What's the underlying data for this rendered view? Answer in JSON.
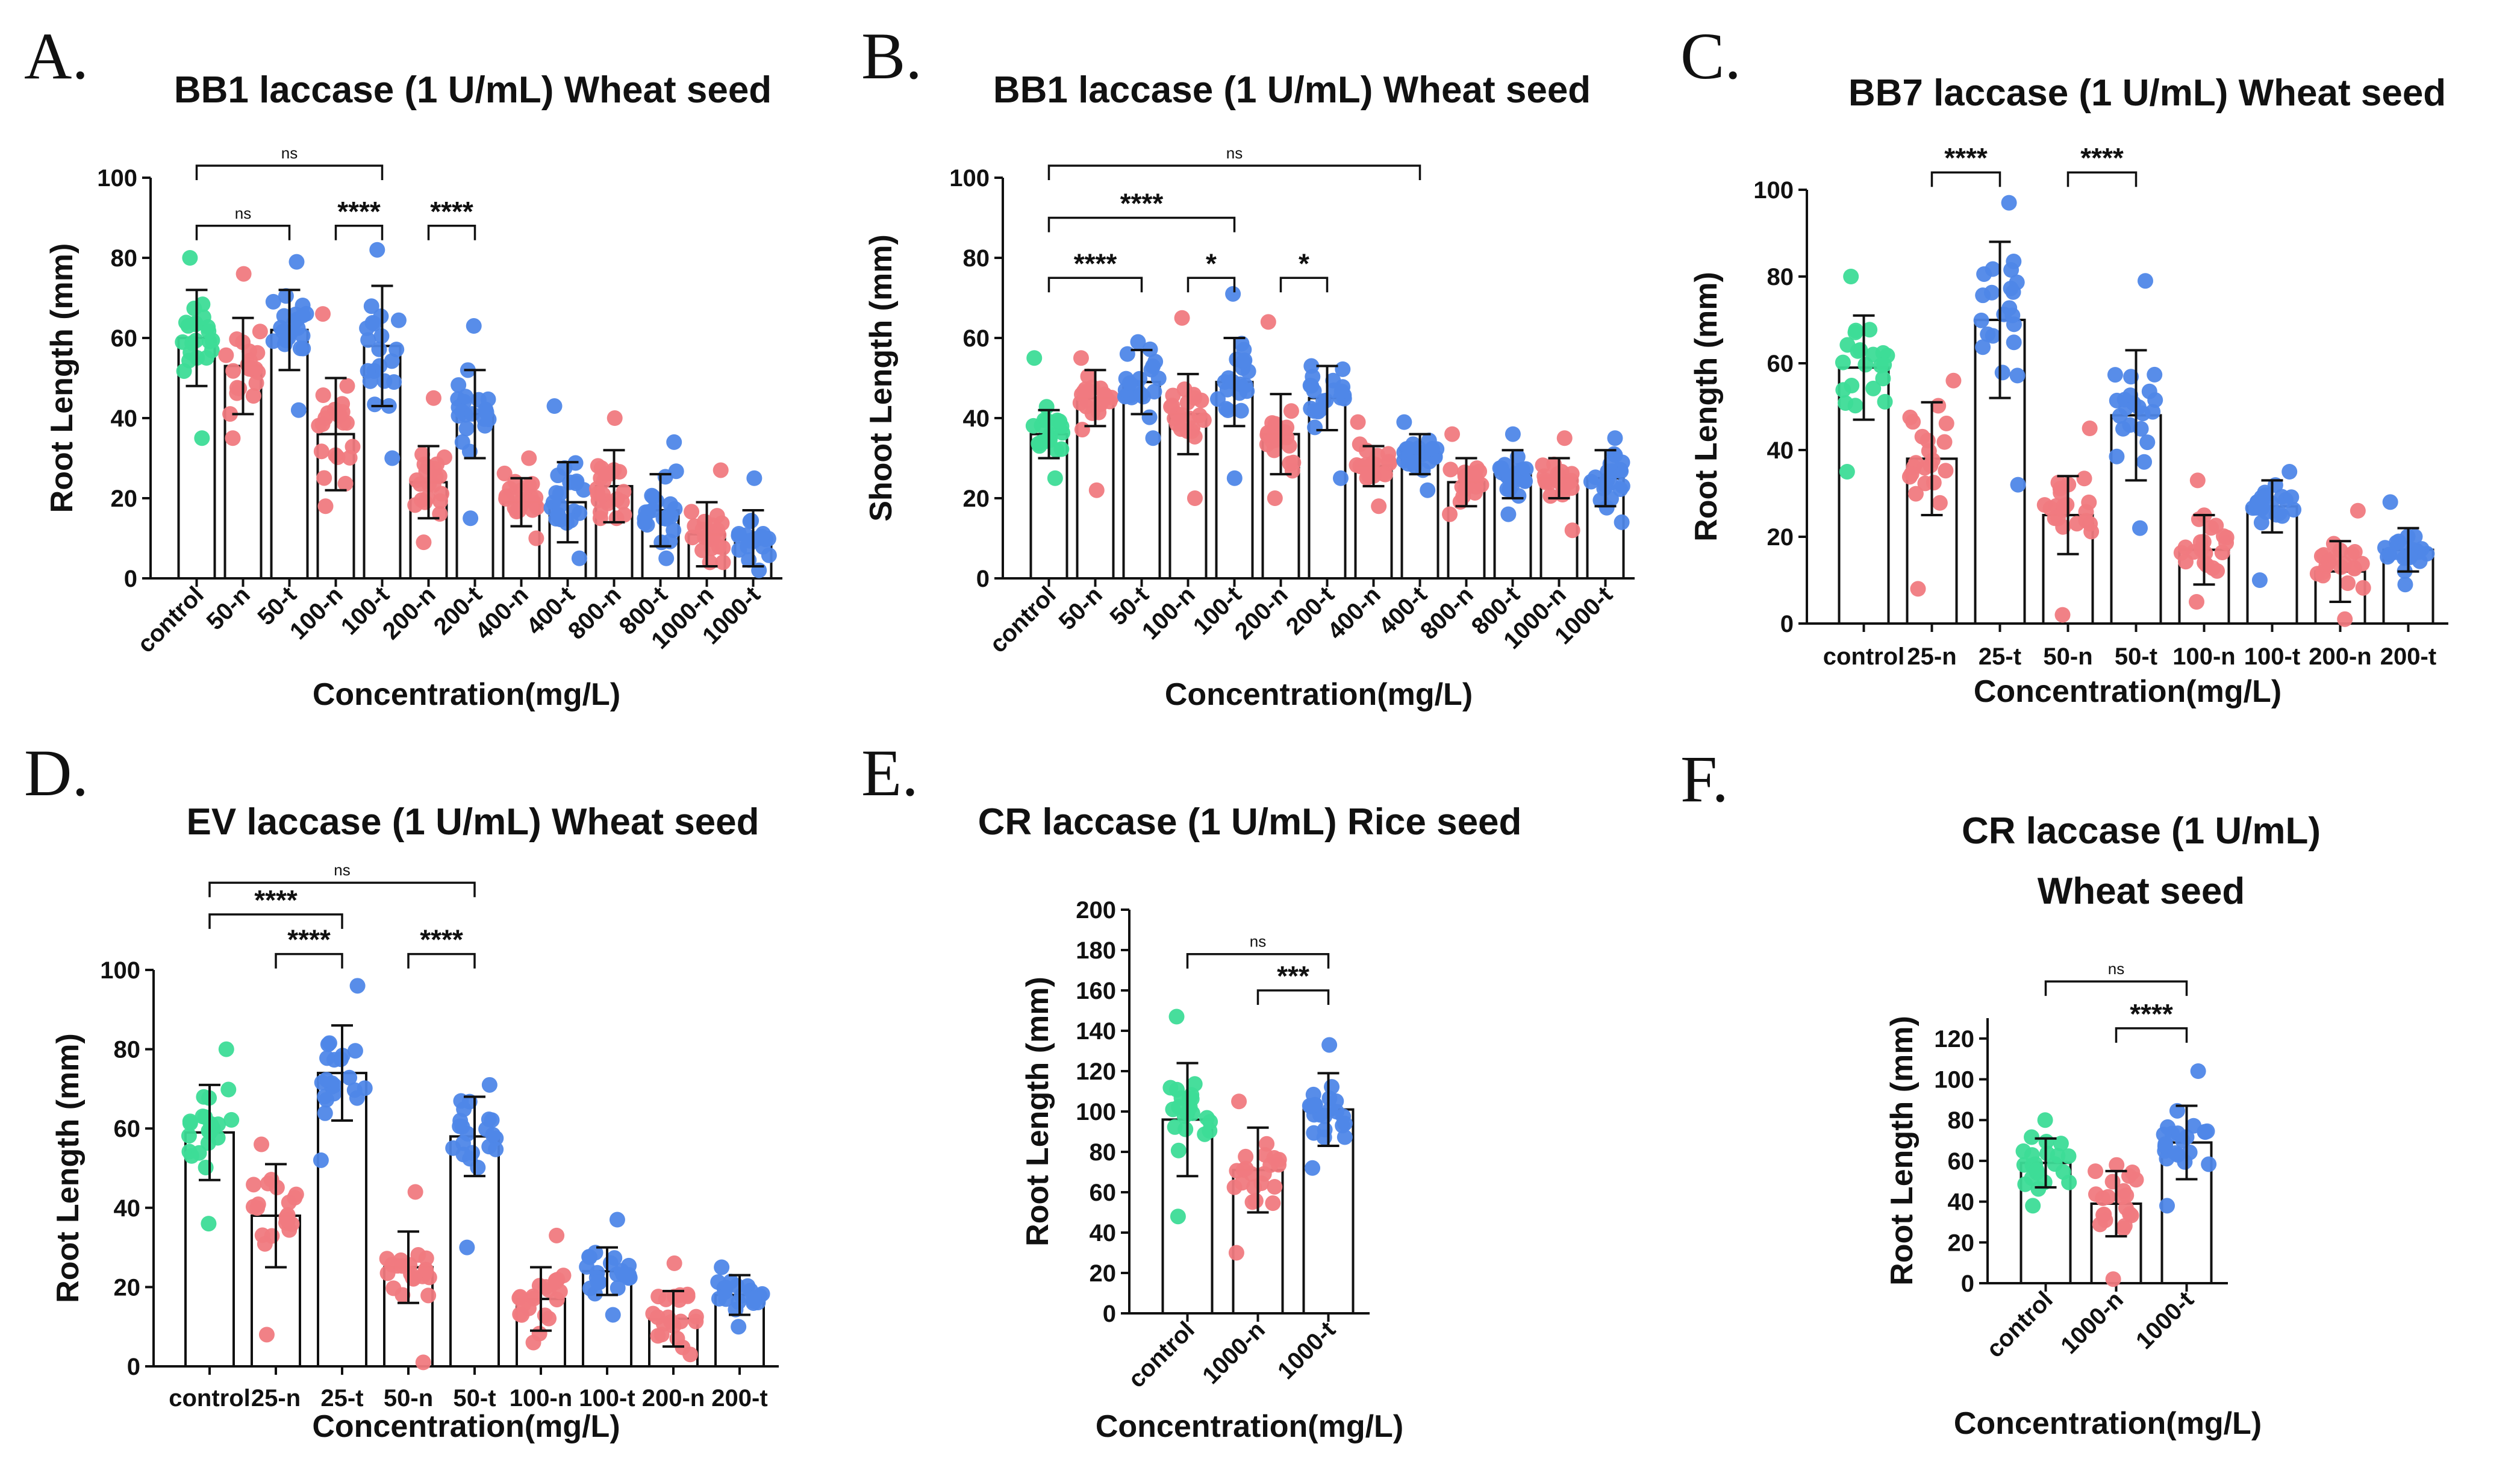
{
  "colors": {
    "control": "#3ddc97",
    "n": "#f07a7f",
    "t": "#4f87e8",
    "bar_fill": "#ffffff",
    "line": "#111111"
  },
  "chart_data": [
    {
      "panel": "A.",
      "type": "bar",
      "title": "BB1 laccase (1 U/mL) Wheat seed",
      "title_lines": [
        "BB1 laccase (1 U/mL) Wheat seed"
      ],
      "xlabel": "Concentration(mg/L)",
      "ylabel": "Root Length (mm)",
      "ylim": [
        0,
        100
      ],
      "yticks": [
        0,
        20,
        40,
        60,
        80,
        100
      ],
      "rotate_labels": true,
      "categories": [
        "control",
        "50-n",
        "50-t",
        "100-n",
        "100-t",
        "200-n",
        "200-t",
        "400-n",
        "400-t",
        "800-n",
        "800-t",
        "1000-n",
        "1000-t"
      ],
      "groups": [
        "control",
        "n",
        "t",
        "n",
        "t",
        "n",
        "t",
        "n",
        "t",
        "n",
        "t",
        "n",
        "t"
      ],
      "values": [
        60,
        53,
        62,
        36,
        58,
        24,
        41,
        19,
        19,
        23,
        17,
        11,
        10
      ],
      "sd": [
        12,
        12,
        10,
        14,
        15,
        9,
        11,
        6,
        10,
        9,
        9,
        8,
        7
      ],
      "points_min": [
        35,
        35,
        42,
        18,
        30,
        9,
        15,
        10,
        5,
        15,
        5,
        4,
        2
      ],
      "points_max": [
        80,
        76,
        79,
        66,
        82,
        45,
        63,
        30,
        43,
        40,
        34,
        27,
        25
      ],
      "significance": [
        {
          "from": "control",
          "to": "100-t",
          "label": "ns",
          "y": 103
        },
        {
          "from": "control",
          "to": "50-t",
          "label": "ns",
          "y": 88
        },
        {
          "from": "100-n",
          "to": "100-t",
          "label": "****",
          "y": 88
        },
        {
          "from": "200-n",
          "to": "200-t",
          "label": "****",
          "y": 88
        }
      ]
    },
    {
      "panel": "B.",
      "type": "bar",
      "title": "BB1 laccase (1 U/mL) Wheat seed",
      "title_lines": [
        "BB1 laccase (1 U/mL) Wheat seed"
      ],
      "xlabel": "Concentration(mg/L)",
      "ylabel": "Shoot Length (mm)",
      "ylim": [
        0,
        100
      ],
      "yticks": [
        0,
        20,
        40,
        60,
        80,
        100
      ],
      "rotate_labels": true,
      "categories": [
        "control",
        "50-n",
        "50-t",
        "100-n",
        "100-t",
        "200-n",
        "200-t",
        "400-n",
        "400-t",
        "800-n",
        "800-t",
        "1000-n",
        "1000-t"
      ],
      "groups": [
        "control",
        "n",
        "t",
        "n",
        "t",
        "n",
        "t",
        "n",
        "t",
        "n",
        "t",
        "n",
        "t"
      ],
      "values": [
        36,
        45,
        49,
        41,
        49,
        36,
        45,
        28,
        31,
        24,
        26,
        25,
        25
      ],
      "sd": [
        6,
        7,
        8,
        10,
        11,
        10,
        8,
        5,
        5,
        6,
        6,
        5,
        7
      ],
      "points_min": [
        25,
        22,
        35,
        20,
        25,
        20,
        25,
        18,
        22,
        16,
        16,
        12,
        14
      ],
      "points_max": [
        55,
        55,
        59,
        65,
        71,
        64,
        53,
        39,
        39,
        36,
        36,
        35,
        35
      ],
      "significance": [
        {
          "from": "control",
          "to": "400-t",
          "label": "ns",
          "y": 103
        },
        {
          "from": "control",
          "to": "100-t",
          "label": "****",
          "y": 90
        },
        {
          "from": "control",
          "to": "50-t",
          "label": "****",
          "y": 75
        },
        {
          "from": "100-n",
          "to": "100-t",
          "label": "*",
          "y": 75
        },
        {
          "from": "200-n",
          "to": "200-t",
          "label": "*",
          "y": 75
        }
      ]
    },
    {
      "panel": "C.",
      "type": "bar",
      "title": "BB7 laccase (1 U/mL) Wheat seed",
      "title_lines": [
        "BB7 laccase (1 U/mL) Wheat seed"
      ],
      "xlabel": "Concentration(mg/L)",
      "ylabel": "Root Length (mm)",
      "ylim": [
        0,
        100
      ],
      "yticks": [
        0,
        20,
        40,
        60,
        80,
        100
      ],
      "rotate_labels": false,
      "categories": [
        "control",
        "25-n",
        "25-t",
        "50-n",
        "50-t",
        "100-n",
        "100-t",
        "200-n",
        "200-t"
      ],
      "groups": [
        "control",
        "n",
        "t",
        "n",
        "t",
        "n",
        "t",
        "n",
        "t"
      ],
      "values": [
        59,
        38,
        70,
        25,
        48,
        17,
        27,
        12,
        17
      ],
      "sd": [
        12,
        13,
        18,
        9,
        15,
        8,
        6,
        7,
        5
      ],
      "points_min": [
        35,
        8,
        32,
        2,
        22,
        5,
        10,
        1,
        9
      ],
      "points_max": [
        80,
        56,
        97,
        45,
        79,
        33,
        35,
        26,
        28
      ],
      "significance": [
        {
          "from": "25-n",
          "to": "25-t",
          "label": "****",
          "y": 104
        },
        {
          "from": "50-n",
          "to": "50-t",
          "label": "****",
          "y": 104
        }
      ]
    },
    {
      "panel": "D.",
      "type": "bar",
      "title": "EV laccase (1 U/mL) Wheat seed",
      "title_lines": [
        "EV laccase (1 U/mL) Wheat seed"
      ],
      "xlabel": "Concentration(mg/L)",
      "ylabel": "Root Length (mm)",
      "ylim": [
        0,
        100
      ],
      "yticks": [
        0,
        20,
        40,
        60,
        80,
        100
      ],
      "rotate_labels": false,
      "categories": [
        "control",
        "25-n",
        "25-t",
        "50-n",
        "50-t",
        "100-n",
        "100-t",
        "200-n",
        "200-t"
      ],
      "groups": [
        "control",
        "n",
        "t",
        "n",
        "t",
        "n",
        "t",
        "n",
        "t"
      ],
      "values": [
        59,
        38,
        74,
        25,
        58,
        17,
        24,
        12,
        18
      ],
      "sd": [
        12,
        13,
        12,
        9,
        10,
        8,
        6,
        7,
        5
      ],
      "points_min": [
        36,
        8,
        52,
        1,
        30,
        6,
        13,
        3,
        10
      ],
      "points_max": [
        80,
        56,
        96,
        44,
        71,
        33,
        37,
        26,
        25
      ],
      "significance": [
        {
          "from": "control",
          "to": "50-t",
          "label": "ns",
          "y": 122
        },
        {
          "from": "control",
          "to": "25-t",
          "label": "****",
          "y": 114
        },
        {
          "from": "25-n",
          "to": "25-t",
          "label": "****",
          "y": 104
        },
        {
          "from": "50-n",
          "to": "50-t",
          "label": "****",
          "y": 104
        }
      ]
    },
    {
      "panel": "E.",
      "type": "bar",
      "title": "CR laccase (1 U/mL) Rice seed",
      "title_lines": [
        "CR laccase (1 U/mL) Rice seed"
      ],
      "xlabel": "Concentration(mg/L)",
      "ylabel": "Root Length (mm)",
      "ylim": [
        0,
        200
      ],
      "yticks": [
        0,
        20,
        40,
        60,
        80,
        100,
        120,
        140,
        160,
        180,
        200
      ],
      "rotate_labels": true,
      "categories": [
        "control",
        "1000-n",
        "1000-t"
      ],
      "groups": [
        "control",
        "n",
        "t"
      ],
      "values": [
        96,
        71,
        101
      ],
      "sd": [
        28,
        21,
        18
      ],
      "points_min": [
        48,
        30,
        72
      ],
      "points_max": [
        147,
        105,
        133
      ],
      "significance": [
        {
          "from": "control",
          "to": "1000-t",
          "label": "ns",
          "y": 178
        },
        {
          "from": "1000-n",
          "to": "1000-t",
          "label": "***",
          "y": 160
        }
      ]
    },
    {
      "panel": "F.",
      "type": "bar",
      "title": "CR laccase (1 U/mL) Wheat seed",
      "title_lines": [
        "CR laccase (1 U/mL)",
        "Wheat seed"
      ],
      "xlabel": "Concentration(mg/L)",
      "ylabel": "Root Length (mm)",
      "ylim": [
        0,
        130
      ],
      "yticks": [
        0,
        20,
        40,
        60,
        80,
        100,
        120
      ],
      "rotate_labels": true,
      "categories": [
        "control",
        "1000-n",
        "1000-t"
      ],
      "groups": [
        "control",
        "n",
        "t"
      ],
      "values": [
        59,
        39,
        69
      ],
      "sd": [
        12,
        16,
        18
      ],
      "points_min": [
        38,
        2,
        38
      ],
      "points_max": [
        80,
        58,
        104
      ],
      "significance": [
        {
          "from": "control",
          "to": "1000-t",
          "label": "ns",
          "y": 148
        },
        {
          "from": "1000-n",
          "to": "1000-t",
          "label": "****",
          "y": 125
        }
      ]
    }
  ]
}
